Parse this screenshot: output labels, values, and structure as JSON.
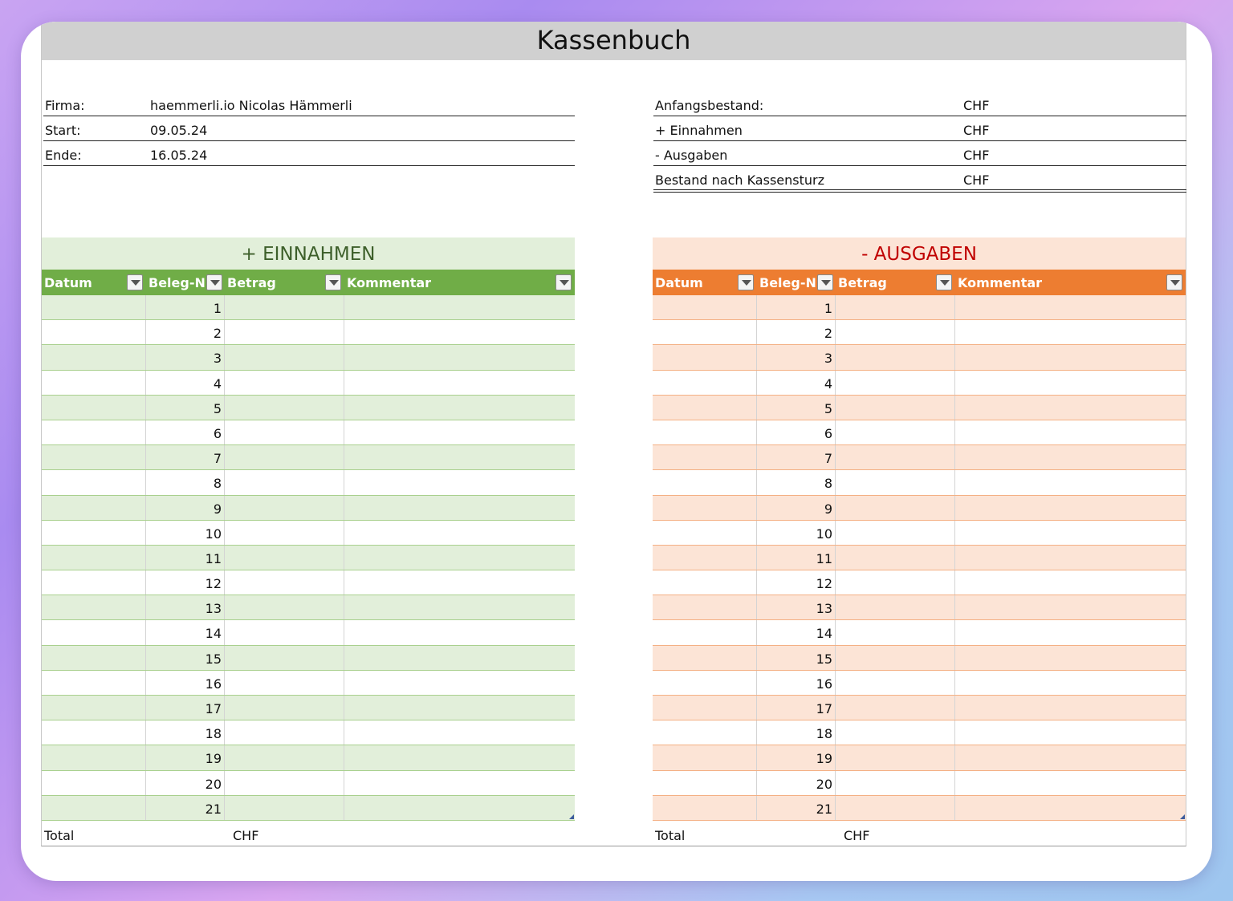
{
  "title": "Kassenbuch",
  "info_left": [
    {
      "label": "Firma:",
      "value": "haemmerli.io Nicolas Hämmerli"
    },
    {
      "label": "Start:",
      "value": "09.05.24"
    },
    {
      "label": "Ende:",
      "value": "16.05.24"
    }
  ],
  "info_right": [
    {
      "label": "Anfangsbestand:",
      "value": "CHF"
    },
    {
      "label": "+ Einnahmen",
      "value": "CHF"
    },
    {
      "label": "- Ausgaben",
      "value": "CHF"
    },
    {
      "label": "Bestand nach Kassensturz",
      "value": "CHF"
    }
  ],
  "columns": [
    "Datum",
    "Beleg-Nr",
    "Betrag",
    "Kommentar"
  ],
  "einnahmen": {
    "title": "+ EINNAHMEN",
    "total_label": "Total",
    "total_currency": "CHF"
  },
  "ausgaben": {
    "title": "- AUSGABEN",
    "total_label": "Total",
    "total_currency": "CHF"
  },
  "row_numbers": [
    "1",
    "2",
    "3",
    "4",
    "5",
    "6",
    "7",
    "8",
    "9",
    "10",
    "11",
    "12",
    "13",
    "14",
    "15",
    "16",
    "17",
    "18",
    "19",
    "20",
    "21"
  ],
  "colors": {
    "income_accent": "#70ad47",
    "expense_accent": "#ed7d31",
    "expense_title": "#c00000"
  }
}
